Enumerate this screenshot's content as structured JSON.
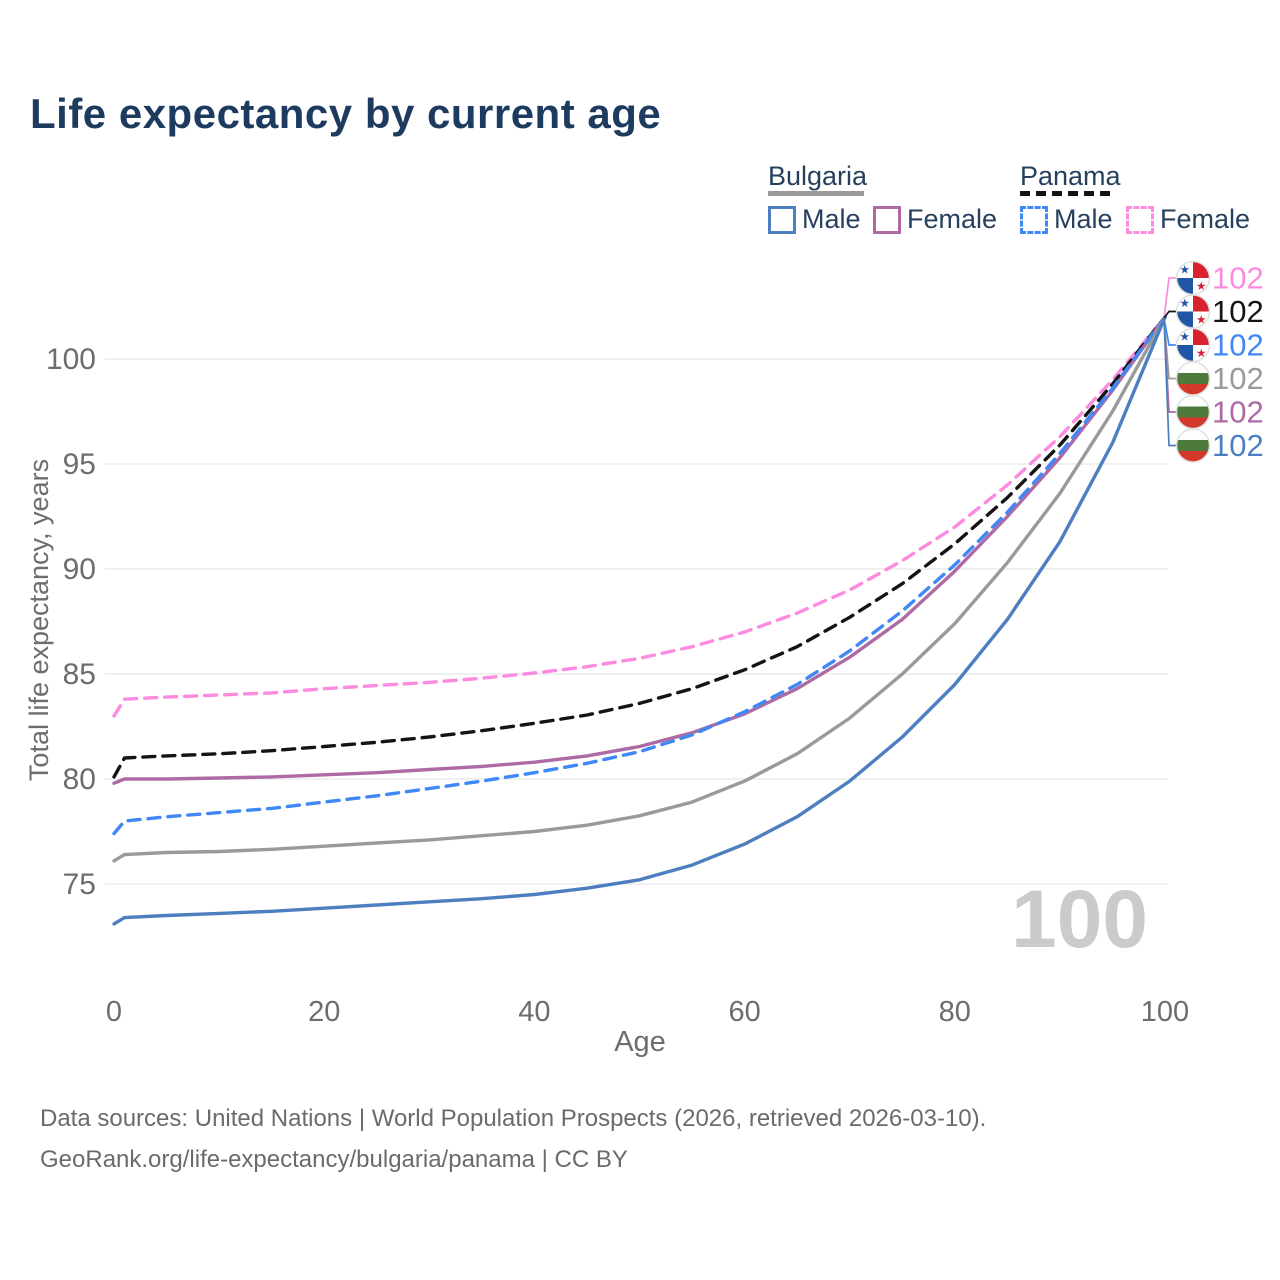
{
  "title": "Life expectancy by current age",
  "legend": {
    "groups": [
      {
        "country": "Bulgaria",
        "underline_style": "solid",
        "underline_color": "#9a9a9a",
        "items": [
          {
            "label": "Male",
            "color": "#4d7fc0",
            "dashed": false
          },
          {
            "label": "Female",
            "color": "#ae6aa4",
            "dashed": false
          }
        ]
      },
      {
        "country": "Panama",
        "underline_style": "dashed",
        "underline_color": "#141414",
        "items": [
          {
            "label": "Male",
            "color": "#3f88f5",
            "dashed": true
          },
          {
            "label": "Female",
            "color": "#fc8be0",
            "dashed": true
          }
        ]
      }
    ]
  },
  "watermark": "100",
  "end_labels": [
    {
      "flag": "panama",
      "value": "102",
      "color": "#fc8be0"
    },
    {
      "flag": "panama",
      "value": "102",
      "color": "#141414"
    },
    {
      "flag": "panama",
      "value": "102",
      "color": "#3f88f5"
    },
    {
      "flag": "bulgaria",
      "value": "102",
      "color": "#9a9a9a"
    },
    {
      "flag": "bulgaria",
      "value": "102",
      "color": "#ae6aa4"
    },
    {
      "flag": "bulgaria",
      "value": "102",
      "color": "#4d7fc0"
    }
  ],
  "footer": {
    "line1": "Data sources: United Nations | World Population Prospects (2026, retrieved 2026-03-10).",
    "line2": "GeoRank.org/life-expectancy/bulgaria/panama | CC BY"
  },
  "chart_data": {
    "type": "line",
    "title": "Life expectancy by current age",
    "xlabel": "Age",
    "ylabel": "Total life expectancy, years",
    "xlim": [
      0,
      100
    ],
    "ylim": [
      72,
      103
    ],
    "x_ticks": [
      0,
      20,
      40,
      60,
      80,
      100
    ],
    "y_ticks": [
      75,
      80,
      85,
      90,
      95,
      100
    ],
    "grid": "horizontal",
    "legend_position": "top-right",
    "x": [
      0,
      1,
      5,
      10,
      15,
      20,
      25,
      30,
      35,
      40,
      45,
      50,
      55,
      60,
      65,
      70,
      75,
      80,
      85,
      90,
      95,
      100
    ],
    "series": [
      {
        "name": "Panama Female",
        "country": "Panama",
        "sex": "Female",
        "color": "#fc8be0",
        "dashed": true,
        "values": [
          83.0,
          83.8,
          83.9,
          84.0,
          84.1,
          84.3,
          84.45,
          84.6,
          84.8,
          85.05,
          85.35,
          85.75,
          86.3,
          87.0,
          87.9,
          89.0,
          90.4,
          92.0,
          94.0,
          96.3,
          99.0,
          102.0
        ]
      },
      {
        "name": "Panama Both sexes",
        "country": "Panama",
        "sex": "Both",
        "color": "#141414",
        "dashed": true,
        "values": [
          80.1,
          81.0,
          81.1,
          81.2,
          81.35,
          81.55,
          81.75,
          82.0,
          82.3,
          82.65,
          83.05,
          83.6,
          84.3,
          85.2,
          86.3,
          87.7,
          89.3,
          91.2,
          93.4,
          95.9,
          98.8,
          102.0
        ]
      },
      {
        "name": "Bulgaria Female",
        "country": "Bulgaria",
        "sex": "Female",
        "color": "#ae6aa4",
        "dashed": false,
        "values": [
          79.8,
          80.0,
          80.0,
          80.05,
          80.1,
          80.2,
          80.3,
          80.45,
          80.6,
          80.8,
          81.1,
          81.55,
          82.2,
          83.1,
          84.3,
          85.8,
          87.6,
          89.9,
          92.5,
          95.3,
          98.5,
          102.0
        ]
      },
      {
        "name": "Panama Male",
        "country": "Panama",
        "sex": "Male",
        "color": "#3f88f5",
        "dashed": true,
        "values": [
          77.4,
          78.0,
          78.2,
          78.4,
          78.6,
          78.9,
          79.2,
          79.55,
          79.9,
          80.3,
          80.75,
          81.3,
          82.1,
          83.2,
          84.5,
          86.1,
          88.0,
          90.2,
          92.7,
          95.5,
          98.6,
          102.0
        ]
      },
      {
        "name": "Bulgaria Both sexes",
        "country": "Bulgaria",
        "sex": "Both",
        "color": "#9a9a9a",
        "dashed": false,
        "values": [
          76.1,
          76.4,
          76.5,
          76.55,
          76.65,
          76.8,
          76.95,
          77.1,
          77.3,
          77.5,
          77.8,
          78.25,
          78.9,
          79.9,
          81.2,
          82.9,
          85.0,
          87.4,
          90.3,
          93.6,
          97.5,
          102.0
        ]
      },
      {
        "name": "Bulgaria Male",
        "country": "Bulgaria",
        "sex": "Male",
        "color": "#4d7fc0",
        "dashed": false,
        "values": [
          73.1,
          73.4,
          73.5,
          73.6,
          73.7,
          73.85,
          74.0,
          74.15,
          74.3,
          74.5,
          74.8,
          75.2,
          75.9,
          76.9,
          78.2,
          79.9,
          82.0,
          84.5,
          87.6,
          91.3,
          96.0,
          102.0
        ]
      }
    ],
    "end_value_label": "102",
    "age_counter": "100"
  }
}
